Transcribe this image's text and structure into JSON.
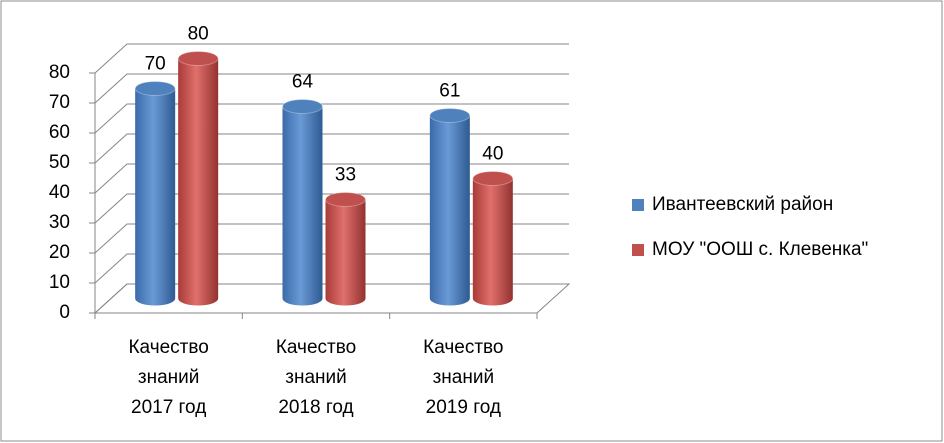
{
  "chart_data": {
    "type": "bar3d",
    "categories": [
      "Качество знаний 2017 год",
      "Качество знаний 2018 год",
      "Качество знаний 2019 год"
    ],
    "series": [
      {
        "name": "Ивантеевский район",
        "color": "#4f81bd",
        "values": [
          70,
          64,
          61
        ]
      },
      {
        "name": "МОУ \"ООШ с. Клевенка\"",
        "color": "#c0504d",
        "values": [
          80,
          33,
          40
        ]
      }
    ],
    "ylim": [
      0,
      80
    ],
    "yticks": [
      0,
      10,
      20,
      30,
      40,
      50,
      60,
      70,
      80
    ],
    "grid": true,
    "legend": "right"
  }
}
